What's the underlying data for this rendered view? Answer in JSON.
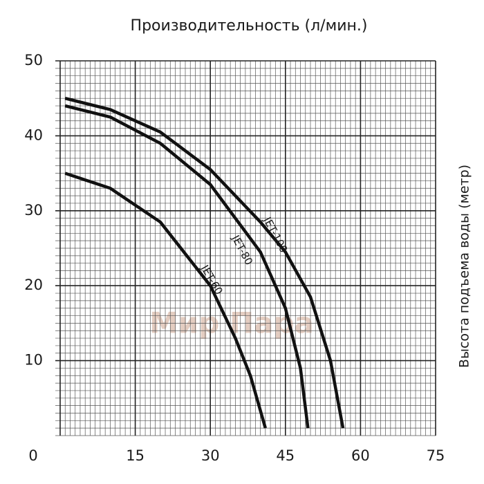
{
  "chart_data": {
    "type": "line",
    "title": "Производительность (л/мин.)",
    "y_label": "Высота подъема воды (метр)",
    "watermark": "Мир Пара",
    "xlim": [
      0,
      75
    ],
    "xticks": [
      0,
      15,
      30,
      45,
      60,
      75
    ],
    "ylim": [
      0,
      50
    ],
    "yticks": [
      10,
      20,
      30,
      40,
      50
    ],
    "grid": true,
    "series": [
      {
        "name": "JET-100",
        "color": "#111111",
        "x": [
          1,
          10,
          20,
          30,
          40,
          45,
          50,
          54,
          56.5
        ],
        "values": [
          45,
          43.5,
          40.5,
          35.5,
          28.5,
          24.5,
          18.5,
          10,
          1
        ]
      },
      {
        "name": "JET-80",
        "color": "#111111",
        "x": [
          1,
          10,
          20,
          30,
          40,
          45,
          48,
          49.5
        ],
        "values": [
          44,
          42.5,
          39,
          33.5,
          24.5,
          17,
          9,
          1
        ]
      },
      {
        "name": "JET-60",
        "color": "#111111",
        "x": [
          1,
          10,
          20,
          30,
          35,
          38,
          41
        ],
        "values": [
          35,
          33,
          28.5,
          20,
          13,
          8,
          1
        ]
      }
    ]
  }
}
